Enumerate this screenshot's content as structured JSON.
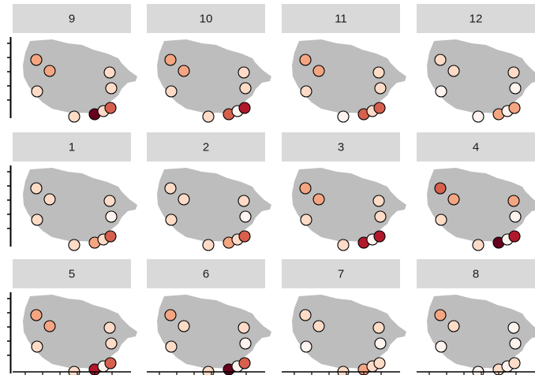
{
  "chart_data": {
    "type": "faceted-map",
    "panels": [
      {
        "label": "9",
        "colors": [
          "#f4a582",
          "#f4a582",
          "#fddbc7",
          "#fddbc7",
          "#fddbc7",
          "#fddbc7",
          "#67001f",
          "#fddbc7",
          "#d6604d"
        ]
      },
      {
        "label": "10",
        "colors": [
          "#f4a582",
          "#f4a582",
          "#fddbc7",
          "#fddbc7",
          "#fddbc7",
          "#fddbc7",
          "#d6604d",
          "#fef3ee",
          "#b2182b"
        ]
      },
      {
        "label": "11",
        "colors": [
          "#f4a582",
          "#f4a582",
          "#fddbc7",
          "#fddbc7",
          "#fddbc7",
          "#fef3ee",
          "#d6604d",
          "#fddbc7",
          "#d6604d"
        ]
      },
      {
        "label": "12",
        "colors": [
          "#fddbc7",
          "#fddbc7",
          "#fef3ee",
          "#fddbc7",
          "#fef3ee",
          "#fef3ee",
          "#f4a582",
          "#fef3ee",
          "#f4a582"
        ]
      },
      {
        "label": "1",
        "colors": [
          "#fddbc7",
          "#fddbc7",
          "#fddbc7",
          "#fddbc7",
          "#fef3ee",
          "#fddbc7",
          "#f4a582",
          "#fddbc7",
          "#d6604d"
        ]
      },
      {
        "label": "2",
        "colors": [
          "#fddbc7",
          "#fddbc7",
          "#fddbc7",
          "#fddbc7",
          "#fef3ee",
          "#fddbc7",
          "#f4a582",
          "#fddbc7",
          "#d6604d"
        ]
      },
      {
        "label": "3",
        "colors": [
          "#f4a582",
          "#f4a582",
          "#fddbc7",
          "#fddbc7",
          "#fddbc7",
          "#fddbc7",
          "#b2182b",
          "#fef3ee",
          "#b2182b"
        ]
      },
      {
        "label": "4",
        "colors": [
          "#d6604d",
          "#f4a582",
          "#fddbc7",
          "#f4a582",
          "#fef3ee",
          "#fddbc7",
          "#67001f",
          "#fef3ee",
          "#b2182b"
        ]
      },
      {
        "label": "5",
        "colors": [
          "#f4a582",
          "#f4a582",
          "#fddbc7",
          "#fddbc7",
          "#fddbc7",
          "#fddbc7",
          "#b2182b",
          "#fef3ee",
          "#d6604d"
        ]
      },
      {
        "label": "6",
        "colors": [
          "#f4a582",
          "#fddbc7",
          "#fddbc7",
          "#fddbc7",
          "#fef3ee",
          "#fddbc7",
          "#67001f",
          "#fef3ee",
          "#d6604d"
        ]
      },
      {
        "label": "7",
        "colors": [
          "#fddbc7",
          "#fddbc7",
          "#fef3ee",
          "#fddbc7",
          "#fef3ee",
          "#fddbc7",
          "#f4a582",
          "#fddbc7",
          "#fddbc7"
        ]
      },
      {
        "label": "8",
        "colors": [
          "#f4a582",
          "#fddbc7",
          "#fef3ee",
          "#fef3ee",
          "#fef3ee",
          "#fef3ee",
          "#fddbc7",
          "#fef3ee",
          "#fddbc7"
        ]
      }
    ],
    "shape_color": "#bdbdbd",
    "strip_color": "#d9d9d9",
    "point_stroke": "#000000"
  }
}
